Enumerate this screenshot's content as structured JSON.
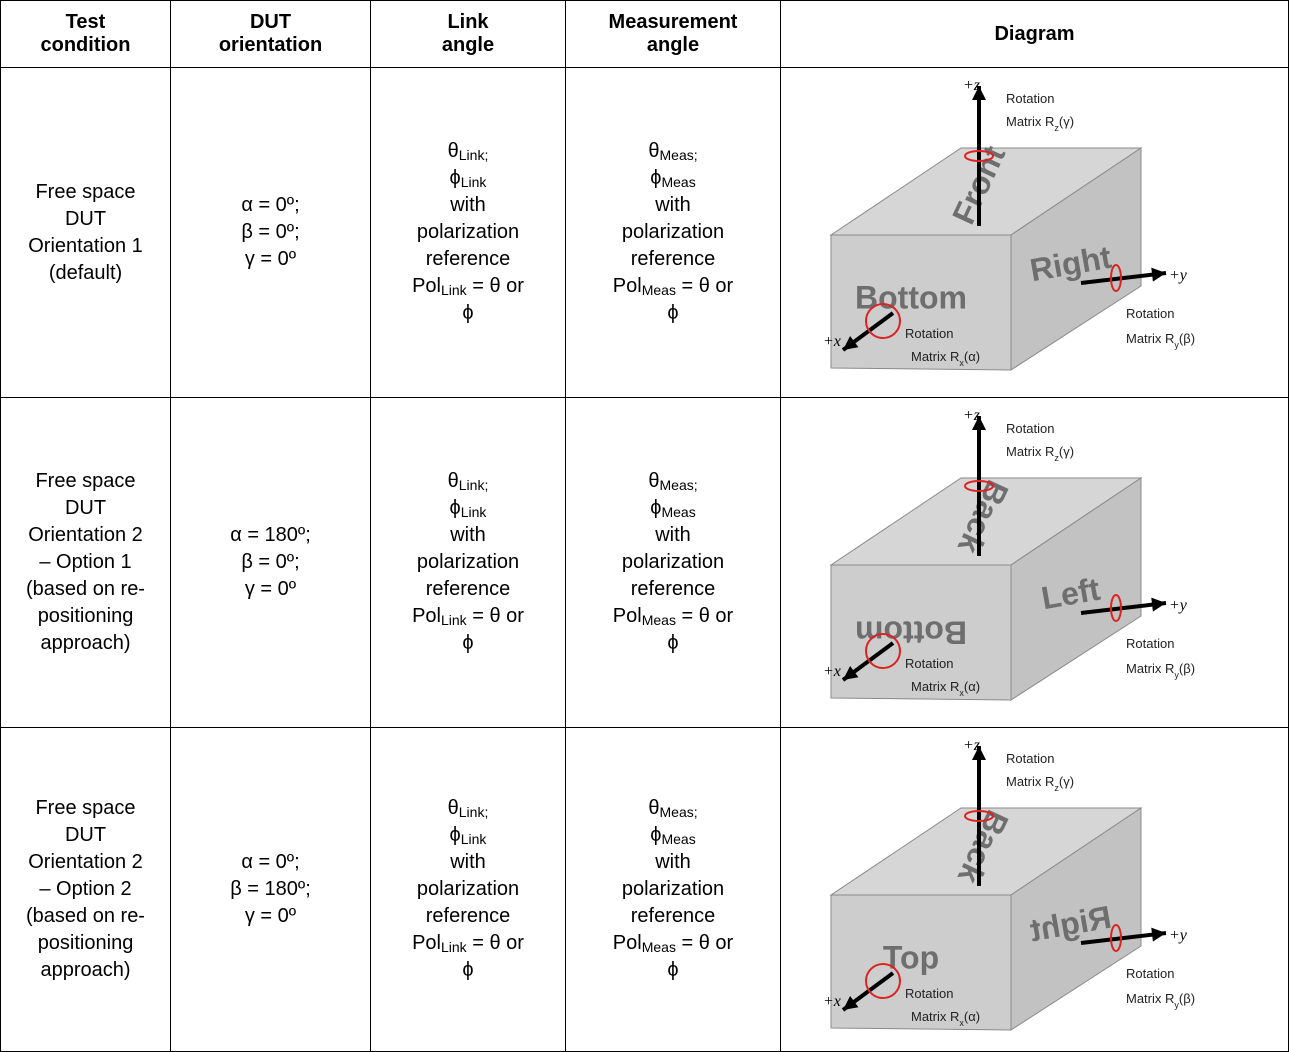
{
  "table": {
    "headers": [
      [
        "Test",
        "condition"
      ],
      [
        "DUT",
        "orientation"
      ],
      [
        "Link",
        "angle"
      ],
      [
        "Measurement",
        "angle"
      ],
      [
        "Diagram"
      ]
    ],
    "rows": [
      {
        "condition": [
          "Free space",
          "DUT",
          "Orientation 1",
          "(default)"
        ],
        "orientation": [
          "α = 0º;",
          "β = 0º;",
          "γ = 0º"
        ],
        "link": [
          [
            "θ",
            "Link;"
          ],
          [
            "ϕ",
            "Link"
          ],
          [
            "with"
          ],
          [
            "polarization"
          ],
          [
            "reference"
          ],
          [
            "Pol",
            "Link",
            " = θ or"
          ],
          [
            "ϕ"
          ]
        ],
        "measurement": [
          [
            "θ",
            "Meas;"
          ],
          [
            "ϕ",
            "Meas"
          ],
          [
            "with"
          ],
          [
            "polarization"
          ],
          [
            "reference"
          ],
          [
            "Pol",
            "Meas",
            " = θ or"
          ],
          [
            "ϕ"
          ]
        ],
        "diagram": {
          "top_face": "Front",
          "side_face": "Right",
          "front_face": "Bottom",
          "z_axis": "+z",
          "y_axis": "+y",
          "x_axis": "+x",
          "rot_z": [
            [
              "Rotation"
            ],
            [
              "Matrix R",
              "z",
              "(γ)"
            ]
          ],
          "rot_y": [
            [
              "Rotation"
            ],
            [
              "Matrix R",
              "y",
              "(β)"
            ]
          ],
          "rot_x": [
            [
              "Rotation"
            ],
            [
              "Matrix R",
              "x",
              "(α)"
            ]
          ]
        }
      },
      {
        "condition": [
          "Free space",
          "DUT",
          "Orientation 2",
          "– Option 1",
          "(based on re-",
          "positioning",
          "approach)"
        ],
        "orientation": [
          "α = 180º;",
          "β = 0º;",
          "γ = 0º"
        ],
        "link": [
          [
            "θ",
            "Link;"
          ],
          [
            "ϕ",
            "Link"
          ],
          [
            "with"
          ],
          [
            "polarization"
          ],
          [
            "reference"
          ],
          [
            "Pol",
            "Link",
            " = θ or"
          ],
          [
            "ϕ"
          ]
        ],
        "measurement": [
          [
            "θ",
            "Meas;"
          ],
          [
            "ϕ",
            "Meas"
          ],
          [
            "with"
          ],
          [
            "polarization"
          ],
          [
            "reference"
          ],
          [
            "Pol",
            "Meas",
            " = θ or"
          ],
          [
            "ϕ"
          ]
        ],
        "diagram": {
          "top_face": "Back",
          "side_face": "Left",
          "front_face": "Bottom",
          "z_axis": "+z",
          "y_axis": "+y",
          "x_axis": "+x",
          "rot_z": [
            [
              "Rotation"
            ],
            [
              "Matrix R",
              "z",
              "(γ)"
            ]
          ],
          "rot_y": [
            [
              "Rotation"
            ],
            [
              "Matrix R",
              "y",
              "(β)"
            ]
          ],
          "rot_x": [
            [
              "Rotation"
            ],
            [
              "Matrix R",
              "x",
              "(α)"
            ]
          ]
        }
      },
      {
        "condition": [
          "Free space",
          "DUT",
          "Orientation 2",
          "– Option 2",
          "(based on re-",
          "positioning",
          "approach)"
        ],
        "orientation": [
          "α = 0º;",
          "β = 180º;",
          "γ = 0º"
        ],
        "link": [
          [
            "θ",
            "Link;"
          ],
          [
            "ϕ",
            "Link"
          ],
          [
            "with"
          ],
          [
            "polarization"
          ],
          [
            "reference"
          ],
          [
            "Pol",
            "Link",
            " = θ or"
          ],
          [
            "ϕ"
          ]
        ],
        "measurement": [
          [
            "θ",
            "Meas;"
          ],
          [
            "ϕ",
            "Meas"
          ],
          [
            "with"
          ],
          [
            "polarization"
          ],
          [
            "reference"
          ],
          [
            "Pol",
            "Meas",
            " = θ or"
          ],
          [
            "ϕ"
          ]
        ],
        "diagram": {
          "top_face": "Back",
          "side_face": "Right",
          "front_face": "Top",
          "z_axis": "+z",
          "y_axis": "+y",
          "x_axis": "+x",
          "rot_z": [
            [
              "Rotation"
            ],
            [
              "Matrix R",
              "z",
              "(γ)"
            ]
          ],
          "rot_y": [
            [
              "Rotation"
            ],
            [
              "Matrix R",
              "y",
              "(β)"
            ]
          ],
          "rot_x": [
            [
              "Rotation"
            ],
            [
              "Matrix R",
              "x",
              "(α)"
            ]
          ]
        }
      }
    ]
  }
}
